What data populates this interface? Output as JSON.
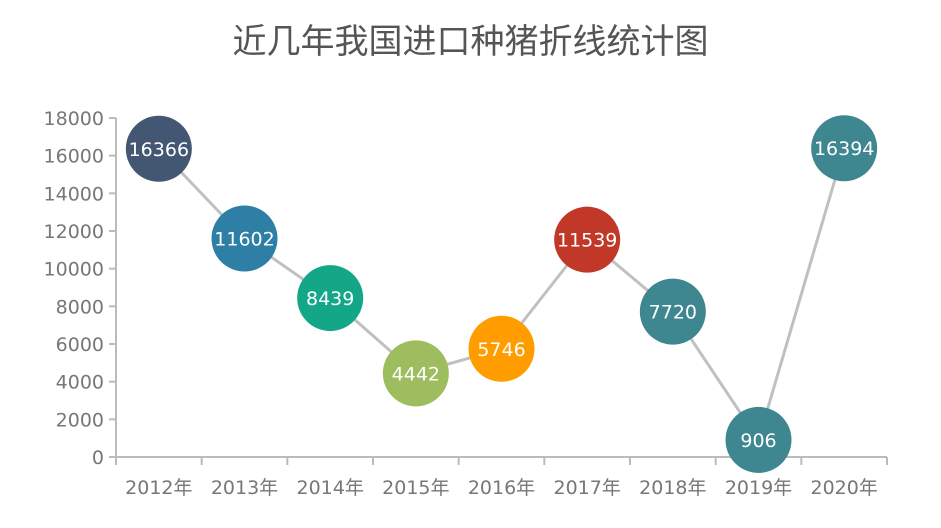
{
  "chart_data": {
    "type": "line",
    "title": "近几年我国进口种猪折线统计图",
    "xlabel": "",
    "ylabel": "",
    "categories": [
      "2012年",
      "2013年",
      "2014年",
      "2015年",
      "2016年",
      "2017年",
      "2018年",
      "2019年",
      "2020年"
    ],
    "values": [
      16366,
      11602,
      8439,
      4442,
      5746,
      11539,
      7720,
      906,
      16394
    ],
    "data_labels": [
      "16366",
      "11602",
      "8439",
      "4442",
      "5746",
      "11539",
      "7720",
      "906",
      "16394"
    ],
    "point_colors": [
      "#435772",
      "#2e7fa5",
      "#13a788",
      "#9ebd5e",
      "#ff9c00",
      "#c23828",
      "#3e8690",
      "#3e8690",
      "#3e8690"
    ],
    "line_color": "#c0c0c0",
    "ylim": [
      0,
      18000
    ],
    "yticks": [
      0,
      2000,
      4000,
      6000,
      8000,
      10000,
      12000,
      14000,
      16000,
      18000
    ],
    "ytick_labels": [
      "0",
      "2000",
      "4000",
      "6000",
      "8000",
      "10000",
      "12000",
      "14000",
      "16000",
      "18000"
    ],
    "grid": false,
    "legend": "none"
  }
}
